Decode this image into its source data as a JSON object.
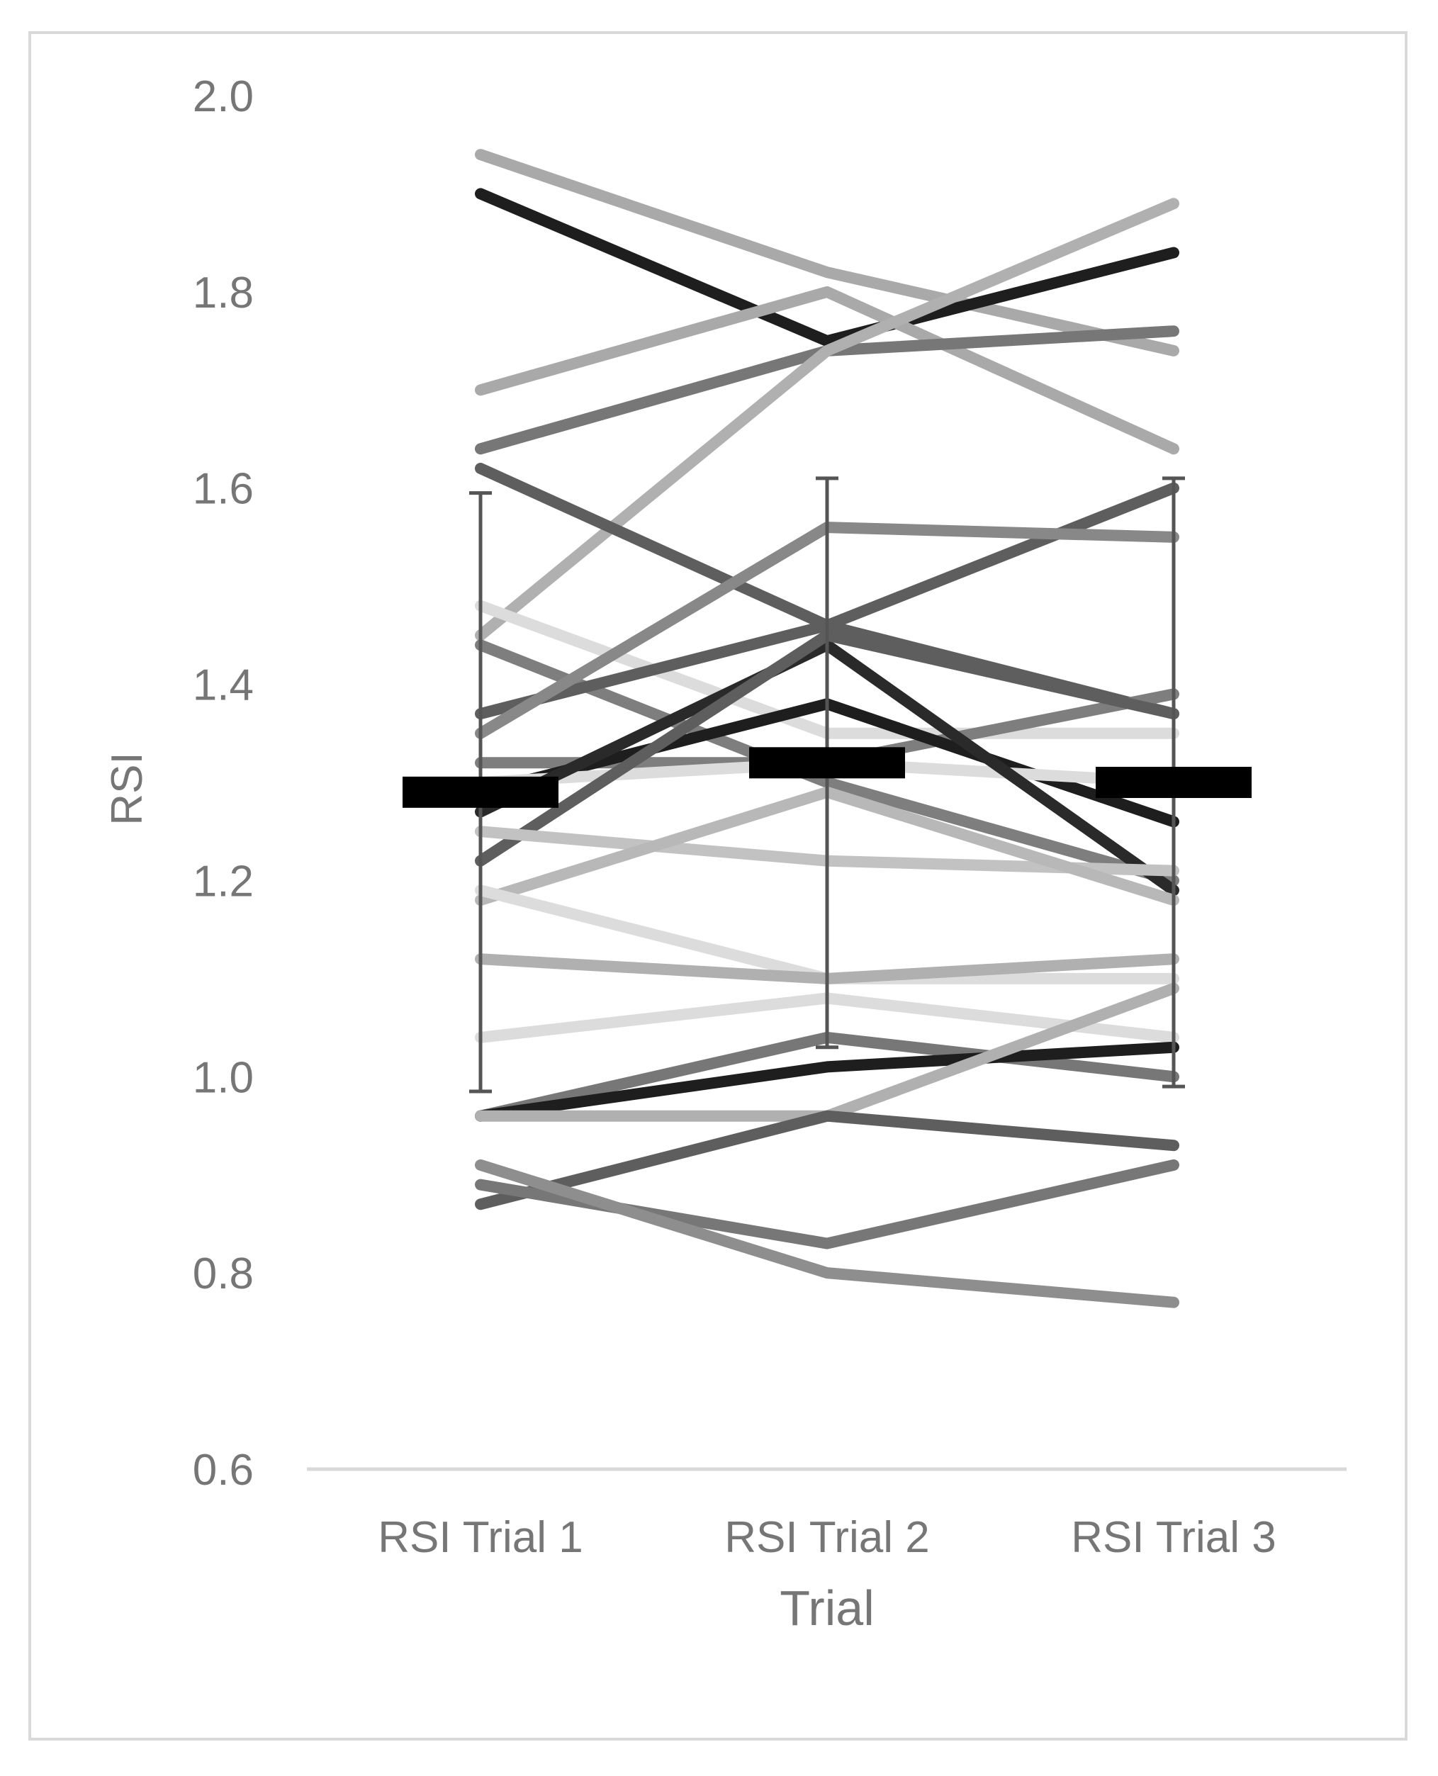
{
  "chart_data": {
    "type": "line",
    "title": "",
    "xlabel": "Trial",
    "ylabel": "RSI",
    "categories": [
      "RSI Trial 1",
      "RSI Trial 2",
      "RSI Trial 3"
    ],
    "ylim": [
      0.6,
      2.0
    ],
    "yticks": [
      "0.6",
      "0.8",
      "1.0",
      "1.2",
      "1.4",
      "1.6",
      "1.8",
      "2.0"
    ],
    "grid": false,
    "legend": "none",
    "mean": {
      "values": [
        1.29,
        1.32,
        1.3
      ],
      "sd": [
        0.305,
        0.29,
        0.31
      ],
      "color": "#000000"
    },
    "series": [
      {
        "values": [
          1.94,
          1.82,
          1.74
        ],
        "color": "#a9a9a9"
      },
      {
        "values": [
          1.9,
          1.75,
          1.84
        ],
        "color": "#1e1e1e"
      },
      {
        "values": [
          1.7,
          1.8,
          1.64
        ],
        "color": "#a9a9a9"
      },
      {
        "values": [
          1.64,
          1.74,
          1.76
        ],
        "color": "#777777"
      },
      {
        "values": [
          1.45,
          1.74,
          1.89
        ],
        "color": "#b0b0b0"
      },
      {
        "values": [
          1.62,
          1.46,
          1.37
        ],
        "color": "#5e5e5e"
      },
      {
        "values": [
          1.48,
          1.35,
          1.35
        ],
        "color": "#dcdcdc"
      },
      {
        "values": [
          1.44,
          1.3,
          1.2
        ],
        "color": "#7e7e7e"
      },
      {
        "values": [
          1.37,
          1.46,
          1.6
        ],
        "color": "#5e5e5e"
      },
      {
        "values": [
          1.35,
          1.56,
          1.55
        ],
        "color": "#888888"
      },
      {
        "values": [
          1.32,
          1.32,
          1.39
        ],
        "color": "#7e7e7e"
      },
      {
        "values": [
          1.29,
          1.38,
          1.26
        ],
        "color": "#1e1e1e"
      },
      {
        "values": [
          1.3,
          1.32,
          1.3
        ],
        "color": "#dcdcdc"
      },
      {
        "values": [
          1.27,
          1.44,
          1.19
        ],
        "color": "#2a2a2a"
      },
      {
        "values": [
          1.22,
          1.45,
          1.37
        ],
        "color": "#5e5e5e"
      },
      {
        "values": [
          1.25,
          1.22,
          1.21
        ],
        "color": "#c2c2c2"
      },
      {
        "values": [
          1.18,
          1.29,
          1.18
        ],
        "color": "#b8b8b8"
      },
      {
        "values": [
          1.19,
          1.1,
          1.1
        ],
        "color": "#dcdcdc"
      },
      {
        "values": [
          1.12,
          1.1,
          1.12
        ],
        "color": "#b0b0b0"
      },
      {
        "values": [
          1.04,
          1.08,
          1.04
        ],
        "color": "#dcdcdc"
      },
      {
        "values": [
          0.96,
          1.04,
          1.0
        ],
        "color": "#777777"
      },
      {
        "values": [
          0.96,
          1.01,
          1.03
        ],
        "color": "#1e1e1e"
      },
      {
        "values": [
          0.96,
          0.96,
          1.09
        ],
        "color": "#b0b0b0"
      },
      {
        "values": [
          0.87,
          0.96,
          0.93
        ],
        "color": "#5e5e5e"
      },
      {
        "values": [
          0.89,
          0.83,
          0.91
        ],
        "color": "#777777"
      },
      {
        "values": [
          0.91,
          0.8,
          0.77
        ],
        "color": "#8e8e8e"
      }
    ]
  }
}
